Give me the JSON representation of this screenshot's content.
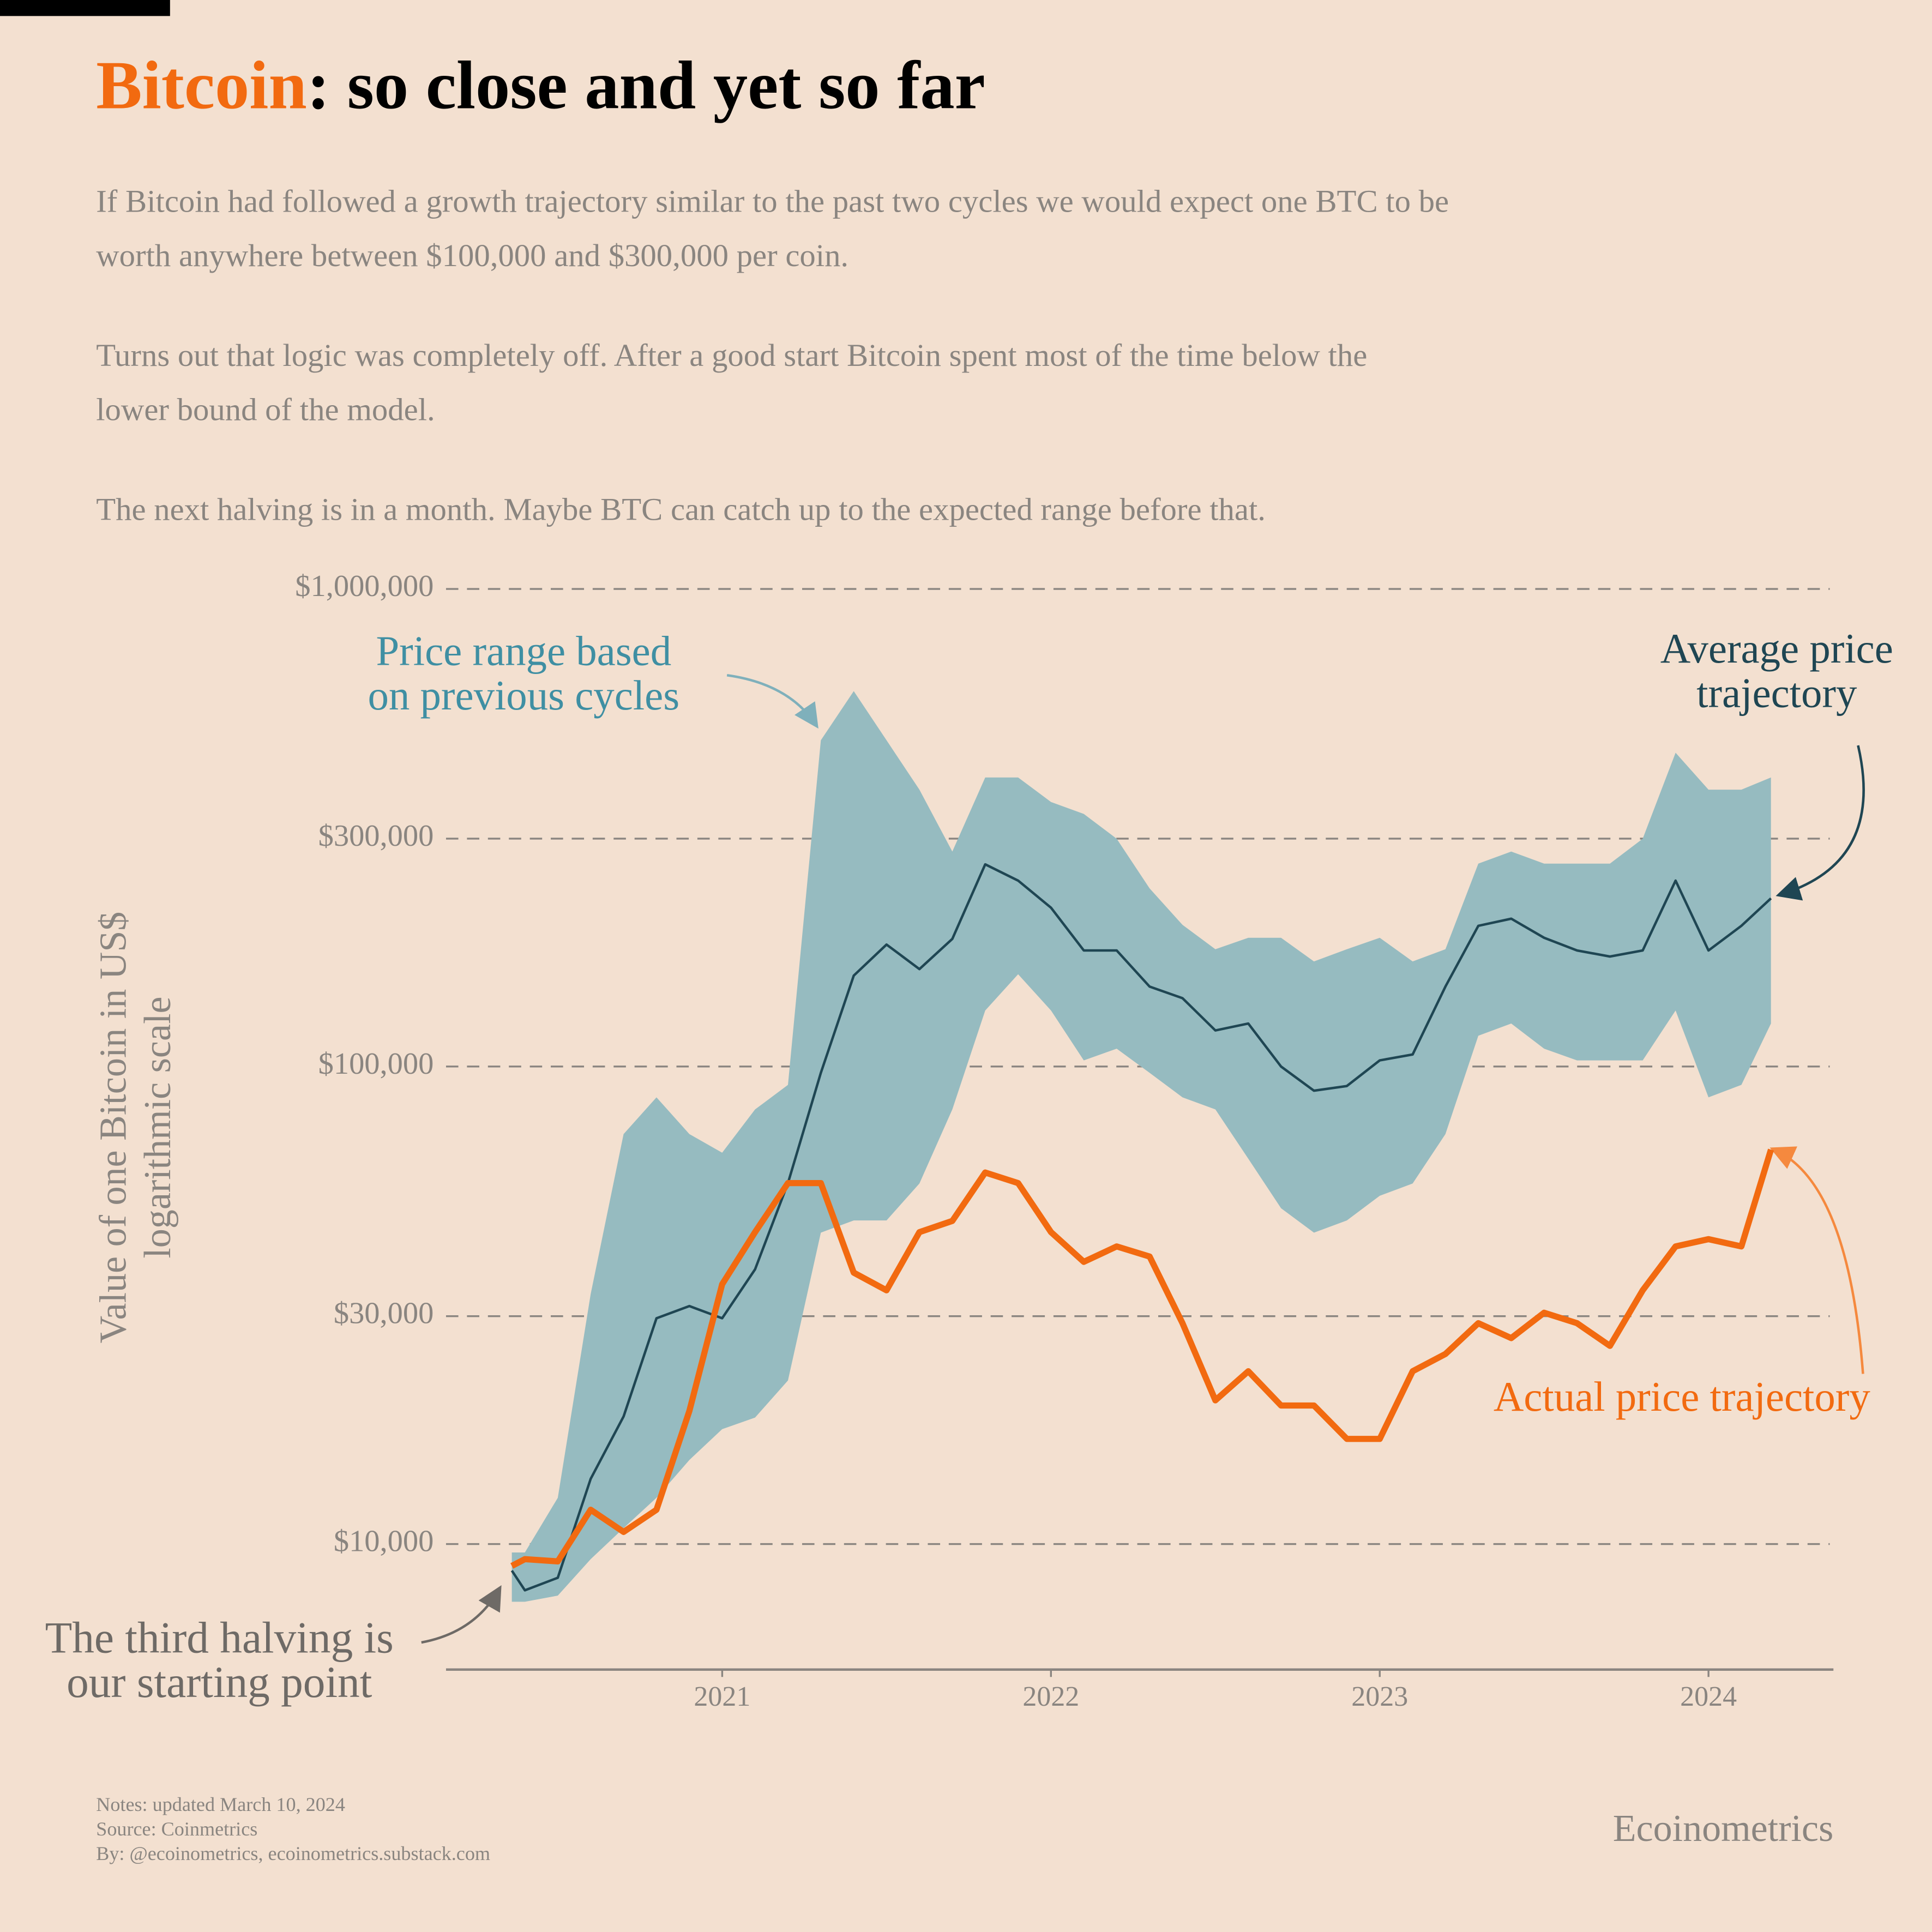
{
  "chart_data": {
    "type": "line",
    "title_highlight": "Bitcoin",
    "title_rest": ": so close and yet so far",
    "title_highlight_color": "#f26a10",
    "subtitle": [
      [
        "If Bitcoin had followed a growth trajectory similar to the past two cycles we would expect one BTC to be",
        "worth anywhere between $100,000 and $300,000 per coin."
      ],
      [
        "Turns out that logic was completely off. After a good start Bitcoin spent most of the time below the",
        "lower bound of the model."
      ],
      [
        "The next halving is in a month. Maybe BTC can catch up to the expected range before that."
      ]
    ],
    "y_label": [
      "Value of one Bitcoin in US$",
      "logarithmic scale"
    ],
    "log_y": true,
    "grid": true,
    "xlim": [
      2020.16,
      2024.38
    ],
    "xticks": [
      2021,
      2022,
      2023,
      2024
    ],
    "ylim": [
      5460,
      1000000
    ],
    "yticks": [
      {
        "value": 10000,
        "label": "$10,000"
      },
      {
        "value": 30000,
        "label": "$30,000"
      },
      {
        "value": 100000,
        "label": "$100,000"
      },
      {
        "value": 300000,
        "label": "$300,000"
      },
      {
        "value": 1000000,
        "label": "$1,000,000"
      }
    ],
    "x": [
      2020.36,
      2020.4,
      2020.5,
      2020.6,
      2020.7,
      2020.8,
      2020.9,
      2021.0,
      2021.1,
      2021.2,
      2021.3,
      2021.4,
      2021.5,
      2021.6,
      2021.7,
      2021.8,
      2021.9,
      2022.0,
      2022.1,
      2022.2,
      2022.3,
      2022.4,
      2022.5,
      2022.6,
      2022.7,
      2022.8,
      2022.9,
      2023.0,
      2023.1,
      2023.2,
      2023.3,
      2023.4,
      2023.5,
      2023.6,
      2023.7,
      2023.8,
      2023.9,
      2024.0,
      2024.1,
      2024.19
    ],
    "band": {
      "color": "#96bbc0",
      "lower": [
        7570,
        7570,
        7800,
        9300,
        10800,
        12500,
        15000,
        17400,
        18400,
        22000,
        44900,
        47600,
        47600,
        56900,
        81300,
        131000,
        156000,
        131000,
        103000,
        109000,
        97000,
        86200,
        81300,
        64100,
        50500,
        44900,
        47600,
        53600,
        56900,
        72200,
        116000,
        123000,
        109000,
        103000,
        103000,
        103000,
        131000,
        86200,
        91500,
        123000
      ],
      "upper": [
        9600,
        9600,
        12500,
        33400,
        72200,
        86200,
        72200,
        66000,
        81300,
        91500,
        482000,
        611000,
        482000,
        380000,
        282000,
        403000,
        403000,
        358000,
        338000,
        300000,
        236000,
        198000,
        176000,
        186000,
        186000,
        166000,
        176000,
        186000,
        166000,
        176000,
        266000,
        282000,
        266000,
        266000,
        266000,
        300000,
        454000,
        380000,
        380000,
        403000
      ]
    },
    "series": [
      {
        "color": "#1f4653",
        "width": 2,
        "values": [
          8800,
          8000,
          8500,
          13700,
          18500,
          29700,
          31500,
          29700,
          37600,
          57000,
          97000,
          155000,
          180000,
          160000,
          185000,
          265000,
          245000,
          215000,
          175000,
          175000,
          147000,
          139000,
          119000,
          123000,
          100000,
          89000,
          91000,
          103000,
          106000,
          147000,
          197000,
          204000,
          186000,
          175000,
          170000,
          175000,
          245000,
          175000,
          197000,
          225000
        ]
      },
      {
        "color": "#f26a10",
        "width": 5,
        "values": [
          9000,
          9300,
          9200,
          11800,
          10600,
          11800,
          19000,
          35000,
          45000,
          57000,
          57000,
          37000,
          34000,
          45000,
          47500,
          60000,
          57000,
          45000,
          39000,
          42000,
          40000,
          29000,
          20000,
          23000,
          19500,
          19500,
          16600,
          16600,
          23000,
          25000,
          29000,
          27000,
          30500,
          29000,
          26000,
          34000,
          42000,
          43500,
          42000,
          67000
        ]
      }
    ],
    "annotations": [
      {
        "lines": [
          "Price range based",
          "on previous cycles"
        ],
        "color": "#3f8fa3"
      },
      {
        "lines": [
          "Average price",
          "trajectory"
        ],
        "color": "#1f4653"
      },
      {
        "lines": [
          "Actual price trajectory"
        ],
        "color": "#f26a10"
      },
      {
        "lines": [
          "The third halving is",
          "our starting point"
        ],
        "color": "#6e6a66"
      }
    ],
    "notes": [
      "Notes: updated March 10, 2024",
      "Source: Coinmetrics",
      "By: @ecoinometrics, ecoinometrics.substack.com"
    ],
    "brand": "Ecoinometrics"
  }
}
